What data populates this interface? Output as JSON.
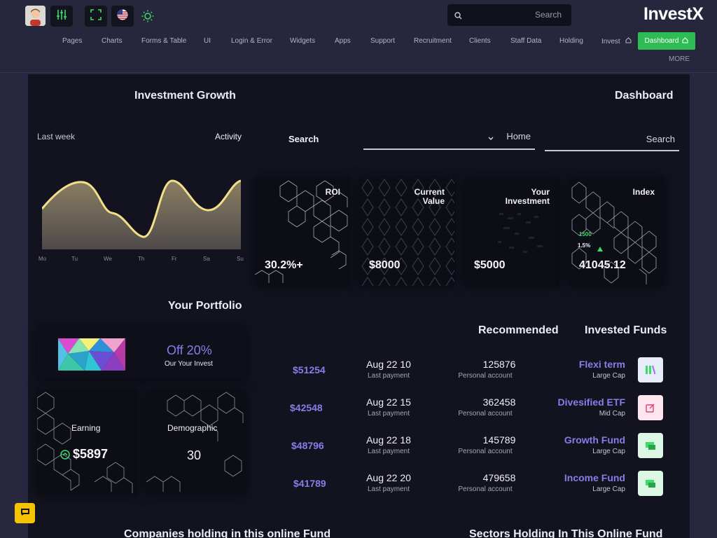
{
  "header": {
    "logo": "InvestX",
    "search_placeholder": "Search",
    "nav": [
      "Pages",
      "Charts",
      "Forms & Table",
      "UI",
      "Login & Error",
      "Widgets",
      "Apps",
      "Support",
      "Recruitment",
      "Clients",
      "Staff Data",
      "Holding",
      "Invest"
    ],
    "active": "Dashboard",
    "more": "MORE",
    "colors": {
      "active_bg": "#2fbd53",
      "accent": "#8a7ce8"
    }
  },
  "growth": {
    "title": "Investment Growth",
    "left_label": "Last week",
    "right_label": "Activity",
    "days": [
      "Mo",
      "Tu",
      "We",
      "Th",
      "Fr",
      "Sa",
      "Su"
    ]
  },
  "dashboard": {
    "title": "Dashboard",
    "search_label": "Search",
    "select_value": "Home",
    "search_placeholder": "Search"
  },
  "stats": [
    {
      "label": "ROI",
      "value": "30.2%+"
    },
    {
      "label": "Current Value",
      "value": "$8000"
    },
    {
      "label": "Your Investment",
      "value": "$5000"
    },
    {
      "label": "Index",
      "value": "41045.12",
      "badge": "1500",
      "change": "1.5%"
    }
  ],
  "portfolio": {
    "title": "Your Portfolio",
    "offer_title": "Off 20%",
    "offer_sub": "Our Your Invest",
    "earning_label": "Earning",
    "earning_value": "$5897",
    "demographic_label": "Demographic",
    "demographic_value": "30"
  },
  "funds": {
    "recommended_label": "Recommended",
    "invested_label": "Invested Funds",
    "rows": [
      {
        "amount": "$51254",
        "date": "Aug 22 10",
        "date_sub": "Last payment",
        "account": "125876",
        "account_sub": "Personal account",
        "name": "Flexi term",
        "cap": "Large Cap",
        "icon": "books-icon"
      },
      {
        "amount": "$42548",
        "date": "Aug 22 15",
        "date_sub": "Last payment",
        "account": "362458",
        "account_sub": "Personal account",
        "name": "Divesified ETF",
        "cap": "Mid Cap",
        "icon": "edit-icon"
      },
      {
        "amount": "$48796",
        "date": "Aug 22 18",
        "date_sub": "Last payment",
        "account": "145789",
        "account_sub": "Personal account",
        "name": "Growth Fund",
        "cap": "Large Cap",
        "icon": "presentation-icon"
      },
      {
        "amount": "$41789",
        "date": "Aug 22 20",
        "date_sub": "Last payment",
        "account": "479658",
        "account_sub": "Personal account",
        "name": "Income Fund",
        "cap": "Large Cap",
        "icon": "presentation-icon"
      }
    ]
  },
  "bottom": {
    "companies_title": "Companies holding in this online Fund",
    "sectors_title": "Sectors Holding In This Online Fund"
  }
}
